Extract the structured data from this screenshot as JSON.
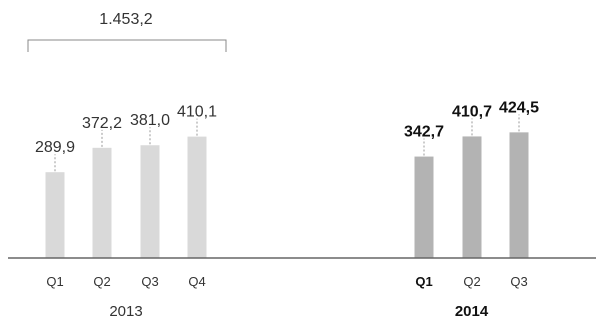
{
  "chart_data": {
    "type": "bar",
    "groups": [
      {
        "year": "2013",
        "bold": false,
        "color": "#d9d9d9",
        "total": "1.453,2",
        "categories": [
          "Q1",
          "Q2",
          "Q3",
          "Q4"
        ],
        "values": [
          289.9,
          372.2,
          381.0,
          410.1
        ],
        "labels": [
          "289,9",
          "372,2",
          "381,0",
          "410,1"
        ]
      },
      {
        "year": "2014",
        "bold": true,
        "color": "#b3b3b3",
        "categories": [
          "Q1",
          "Q2",
          "Q3"
        ],
        "values": [
          342.7,
          410.7,
          424.5
        ],
        "labels": [
          "342,7",
          "410,7",
          "424,5"
        ]
      }
    ],
    "ylim": [
      0,
      500
    ],
    "grid": false,
    "legend": "none",
    "xlabel": "",
    "ylabel": ""
  }
}
